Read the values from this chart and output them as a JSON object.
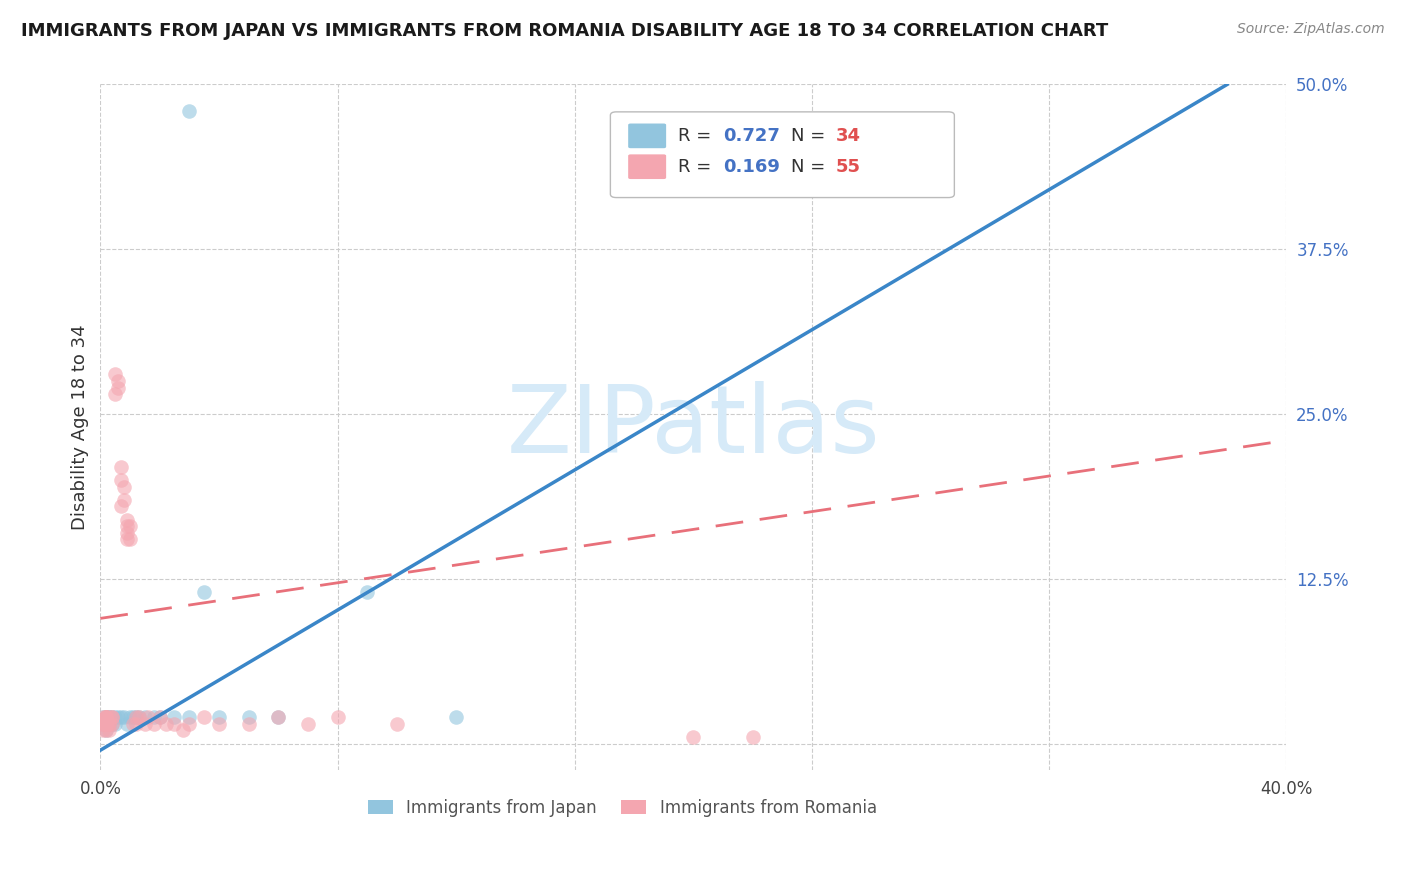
{
  "title": "IMMIGRANTS FROM JAPAN VS IMMIGRANTS FROM ROMANIA DISABILITY AGE 18 TO 34 CORRELATION CHART",
  "source": "Source: ZipAtlas.com",
  "ylabel": "Disability Age 18 to 34",
  "xlim": [
    0.0,
    0.4
  ],
  "ylim": [
    -0.02,
    0.5
  ],
  "japan_R": 0.727,
  "japan_N": 34,
  "romania_R": 0.169,
  "romania_N": 55,
  "japan_color": "#92c5de",
  "romania_color": "#f4a6b0",
  "japan_line_color": "#3a86c8",
  "romania_line_color": "#e8707a",
  "watermark": "ZIPatlas",
  "watermark_color": "#d6eaf8",
  "legend_japan_label": "Immigrants from Japan",
  "legend_romania_label": "Immigrants from Romania",
  "japan_points": [
    [
      0.001,
      0.02
    ],
    [
      0.001,
      0.015
    ],
    [
      0.002,
      0.02
    ],
    [
      0.002,
      0.015
    ],
    [
      0.002,
      0.01
    ],
    [
      0.003,
      0.02
    ],
    [
      0.003,
      0.015
    ],
    [
      0.003,
      0.02
    ],
    [
      0.004,
      0.015
    ],
    [
      0.004,
      0.02
    ],
    [
      0.005,
      0.02
    ],
    [
      0.005,
      0.015
    ],
    [
      0.006,
      0.02
    ],
    [
      0.007,
      0.02
    ],
    [
      0.008,
      0.02
    ],
    [
      0.009,
      0.015
    ],
    [
      0.01,
      0.02
    ],
    [
      0.011,
      0.02
    ],
    [
      0.012,
      0.02
    ],
    [
      0.013,
      0.02
    ],
    [
      0.015,
      0.02
    ],
    [
      0.018,
      0.02
    ],
    [
      0.02,
      0.02
    ],
    [
      0.025,
      0.02
    ],
    [
      0.03,
      0.02
    ],
    [
      0.035,
      0.115
    ],
    [
      0.04,
      0.02
    ],
    [
      0.05,
      0.02
    ],
    [
      0.06,
      0.02
    ],
    [
      0.03,
      0.48
    ],
    [
      0.19,
      0.42
    ],
    [
      0.21,
      0.42
    ],
    [
      0.09,
      0.115
    ],
    [
      0.12,
      0.02
    ]
  ],
  "romania_points": [
    [
      0.001,
      0.015
    ],
    [
      0.001,
      0.02
    ],
    [
      0.001,
      0.01
    ],
    [
      0.001,
      0.015
    ],
    [
      0.002,
      0.02
    ],
    [
      0.002,
      0.015
    ],
    [
      0.002,
      0.02
    ],
    [
      0.002,
      0.015
    ],
    [
      0.002,
      0.01
    ],
    [
      0.002,
      0.02
    ],
    [
      0.002,
      0.015
    ],
    [
      0.002,
      0.02
    ],
    [
      0.003,
      0.015
    ],
    [
      0.003,
      0.02
    ],
    [
      0.003,
      0.015
    ],
    [
      0.003,
      0.01
    ],
    [
      0.004,
      0.02
    ],
    [
      0.004,
      0.015
    ],
    [
      0.004,
      0.02
    ],
    [
      0.005,
      0.28
    ],
    [
      0.005,
      0.265
    ],
    [
      0.006,
      0.27
    ],
    [
      0.006,
      0.275
    ],
    [
      0.007,
      0.2
    ],
    [
      0.007,
      0.21
    ],
    [
      0.007,
      0.18
    ],
    [
      0.008,
      0.185
    ],
    [
      0.008,
      0.195
    ],
    [
      0.009,
      0.16
    ],
    [
      0.009,
      0.17
    ],
    [
      0.009,
      0.155
    ],
    [
      0.009,
      0.165
    ],
    [
      0.01,
      0.155
    ],
    [
      0.01,
      0.165
    ],
    [
      0.011,
      0.015
    ],
    [
      0.012,
      0.02
    ],
    [
      0.012,
      0.015
    ],
    [
      0.013,
      0.02
    ],
    [
      0.015,
      0.015
    ],
    [
      0.016,
      0.02
    ],
    [
      0.018,
      0.015
    ],
    [
      0.02,
      0.02
    ],
    [
      0.022,
      0.015
    ],
    [
      0.025,
      0.015
    ],
    [
      0.028,
      0.01
    ],
    [
      0.03,
      0.015
    ],
    [
      0.035,
      0.02
    ],
    [
      0.04,
      0.015
    ],
    [
      0.05,
      0.015
    ],
    [
      0.06,
      0.02
    ],
    [
      0.07,
      0.015
    ],
    [
      0.08,
      0.02
    ],
    [
      0.1,
      0.015
    ],
    [
      0.2,
      0.005
    ],
    [
      0.22,
      0.005
    ]
  ],
  "japan_line_pts": [
    [
      0.0,
      -0.005
    ],
    [
      0.38,
      0.5
    ]
  ],
  "romania_line_pts": [
    [
      0.0,
      0.095
    ],
    [
      0.4,
      0.23
    ]
  ]
}
